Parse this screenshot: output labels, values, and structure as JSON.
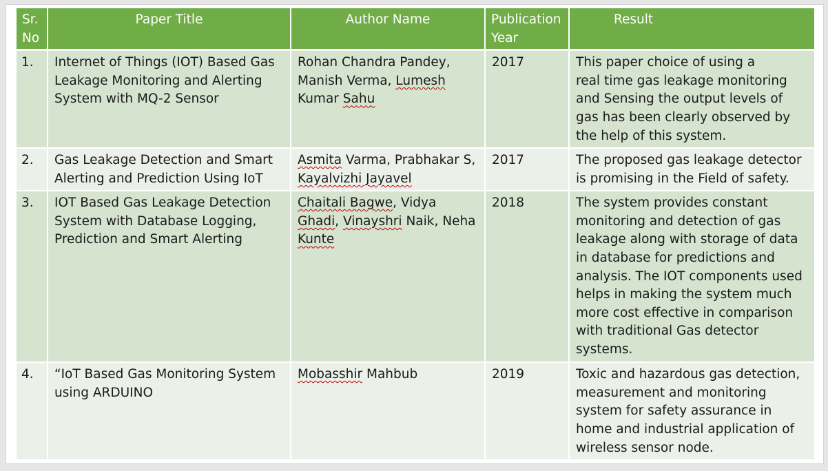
{
  "table": {
    "headers": {
      "srno": "Sr. No",
      "title": "Paper Title",
      "author": "Author Name",
      "year": "Publication Year",
      "result": "Result"
    },
    "rows": [
      {
        "srno": "1.",
        "title": "Internet of Things (IOT) Based Gas Leakage Monitoring and Alerting System with MQ-2 Sensor",
        "author": {
          "a": "Rohan Chandra Pandey, Manish Verma, ",
          "b": "Lumesh",
          "c": " Kumar ",
          "d": "Sahu"
        },
        "year": "2017",
        "result": {
          "l1": "This paper choice of using a",
          "l2": "real time gas leakage monitoring and Sensing the output levels of gas has been clearly observed by",
          "l3": "the help of this system."
        }
      },
      {
        "srno": "2.",
        "title": "Gas Leakage Detection and Smart Alerting and Prediction Using IoT",
        "author": {
          "a": "Asmita",
          "b": " Varma, Prabhakar S, ",
          "c": "Kayalvizhi Jayavel"
        },
        "year": "2017",
        "result": "The proposed gas leakage detector is promising in the Field of safety."
      },
      {
        "srno": "3.",
        "title": "IOT Based Gas Leakage Detection System with Database Logging, Prediction and Smart Alerting",
        "author": {
          "a": "Chaitali Bagwe",
          "b": ", Vidya ",
          "c": "Ghadi",
          "d": ", ",
          "e": "Vinayshri",
          "f": " Naik, Neha ",
          "g": "Kunte"
        },
        "year": "2018",
        "result": "The system provides constant monitoring and detection of gas leakage along with storage of data in database for predictions and analysis. The IOT components used helps in making the system much more cost effective in comparison with traditional Gas detector systems."
      },
      {
        "srno": "4.",
        "title": "“IoT Based Gas Monitoring  System using  ARDUINO",
        "author": {
          "a": "Mobasshir",
          "b": " Mahbub"
        },
        "year": "2019",
        "result": "Toxic and hazardous gas detection, measurement and monitoring system for safety assurance in home and industrial application of wireless sensor node."
      }
    ]
  }
}
